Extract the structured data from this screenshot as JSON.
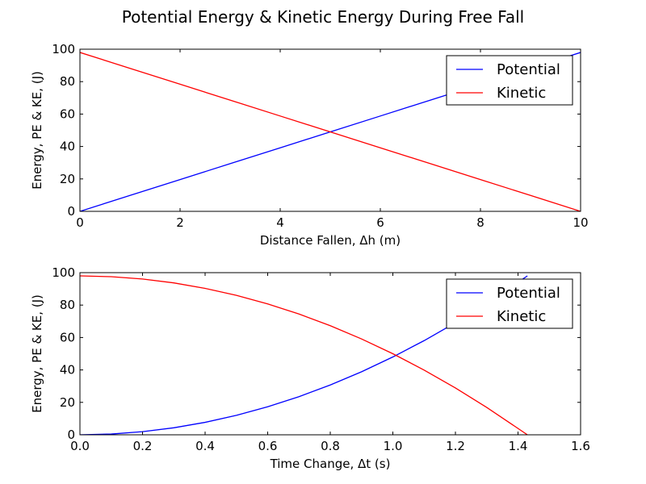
{
  "title": "Potential Energy & Kinetic Energy During Free Fall",
  "colors": {
    "potential": "#0000ff",
    "kinetic": "#ff0000",
    "axes": "#000000",
    "background": "#ffffff"
  },
  "chart_data": [
    {
      "type": "line",
      "xlabel": "Distance Fallen, Δh (m)",
      "ylabel": "Energy, PE & KE, (J)",
      "xlim": [
        0,
        10
      ],
      "ylim": [
        0,
        100
      ],
      "xticks": [
        "0",
        "2",
        "4",
        "6",
        "8",
        "10"
      ],
      "yticks": [
        "0",
        "20",
        "40",
        "60",
        "80",
        "100"
      ],
      "grid": false,
      "legend_position": "top-right",
      "x": [
        0,
        1,
        2,
        3,
        4,
        5,
        6,
        7,
        8,
        9,
        10
      ],
      "series": [
        {
          "name": "Potential",
          "values": [
            0,
            9.8,
            19.6,
            29.4,
            39.2,
            49,
            58.8,
            68.6,
            78.4,
            88.2,
            98
          ]
        },
        {
          "name": "Kinetic",
          "values": [
            98,
            88.2,
            78.4,
            68.6,
            58.8,
            49,
            39.2,
            29.4,
            19.6,
            9.8,
            0
          ]
        }
      ]
    },
    {
      "type": "line",
      "xlabel": "Time Change, Δt (s)",
      "ylabel": "Energy, PE & KE, (J)",
      "xlim": [
        0,
        1.6
      ],
      "ylim": [
        0,
        100
      ],
      "xticks": [
        "0.0",
        "0.2",
        "0.4",
        "0.6",
        "0.8",
        "1.0",
        "1.2",
        "1.4",
        "1.6"
      ],
      "yticks": [
        "0",
        "20",
        "40",
        "60",
        "80",
        "100"
      ],
      "grid": false,
      "legend_position": "top-right",
      "x": [
        0,
        0.1,
        0.2,
        0.3,
        0.4,
        0.5,
        0.6,
        0.7,
        0.8,
        0.9,
        1.0,
        1.1,
        1.2,
        1.3,
        1.4,
        1.43
      ],
      "series": [
        {
          "name": "Potential",
          "values": [
            0,
            0.48,
            1.92,
            4.32,
            7.68,
            12,
            17.28,
            23.52,
            30.72,
            38.88,
            48,
            58.08,
            69.12,
            81.12,
            94.08,
            98
          ]
        },
        {
          "name": "Kinetic",
          "values": [
            98,
            97.52,
            96.08,
            93.68,
            90.32,
            86,
            80.72,
            74.48,
            67.28,
            59.12,
            50,
            39.92,
            28.88,
            16.88,
            3.92,
            0
          ]
        }
      ]
    }
  ]
}
